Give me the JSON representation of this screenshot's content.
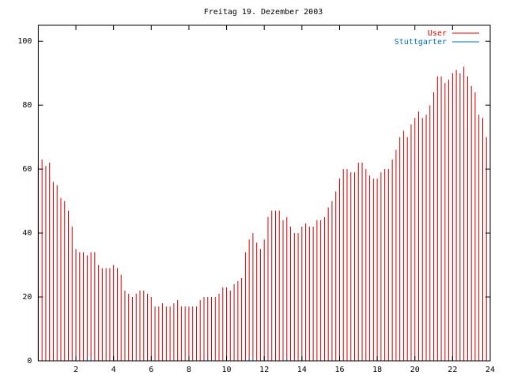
{
  "chart_data": {
    "type": "impulses",
    "title": "Freitag 19. Dezember 2003",
    "xlim": [
      0,
      24
    ],
    "xticks": [
      2,
      4,
      6,
      8,
      10,
      12,
      14,
      16,
      18,
      20,
      22,
      24
    ],
    "ylim": [
      0,
      105
    ],
    "yticks": [
      0,
      20,
      40,
      60,
      80,
      100
    ],
    "legend": "top-right",
    "x": [
      0,
      0.2,
      0.4,
      0.6,
      0.8,
      1,
      1.2,
      1.4,
      1.6,
      1.8,
      2,
      2.2,
      2.4,
      2.6,
      2.8,
      3,
      3.2,
      3.4,
      3.6,
      3.8,
      4,
      4.2,
      4.4,
      4.6,
      4.8,
      5,
      5.2,
      5.4,
      5.6,
      5.8,
      6,
      6.2,
      6.4,
      6.6,
      6.8,
      7,
      7.2,
      7.4,
      7.6,
      7.8,
      8,
      8.2,
      8.4,
      8.6,
      8.8,
      9,
      9.2,
      9.4,
      9.6,
      9.8,
      10,
      10.2,
      10.4,
      10.6,
      10.8,
      11,
      11.2,
      11.4,
      11.6,
      11.8,
      12,
      12.2,
      12.4,
      12.6,
      12.8,
      13,
      13.2,
      13.4,
      13.6,
      13.8,
      14,
      14.2,
      14.4,
      14.6,
      14.8,
      15,
      15.2,
      15.4,
      15.6,
      15.8,
      16,
      16.2,
      16.4,
      16.6,
      16.8,
      17,
      17.2,
      17.4,
      17.6,
      17.8,
      18,
      18.2,
      18.4,
      18.6,
      18.8,
      19,
      19.2,
      19.4,
      19.6,
      19.8,
      20,
      20.2,
      20.4,
      20.6,
      20.8,
      21,
      21.2,
      21.4,
      21.6,
      21.8,
      22,
      22.2,
      22.4,
      22.6,
      22.8,
      23,
      23.2,
      23.4,
      23.6,
      23.8
    ],
    "series": [
      {
        "name": "User",
        "color": "#e00000",
        "values": [
          61,
          63,
          61,
          62,
          56,
          55,
          51,
          50,
          47,
          42,
          35,
          34,
          34,
          33,
          34,
          34,
          30,
          29,
          29,
          29,
          30,
          29,
          27,
          22,
          21,
          20,
          21,
          22,
          22,
          21,
          20,
          17,
          17,
          18,
          17,
          17,
          18,
          19,
          17,
          17,
          17,
          17,
          17,
          19,
          20,
          20,
          20,
          20,
          21,
          23,
          23,
          22,
          24,
          25,
          26,
          34,
          38,
          40,
          37,
          35,
          38,
          45,
          47,
          47,
          47,
          44,
          45,
          42,
          40,
          40,
          42,
          43,
          42,
          42,
          44,
          44,
          45,
          48,
          50,
          53,
          57,
          60,
          60,
          59,
          59,
          62,
          62,
          60,
          58,
          57,
          57,
          59,
          60,
          60,
          63,
          66,
          70,
          72,
          70,
          74,
          76,
          78,
          76,
          77,
          80,
          84,
          89,
          89,
          87,
          88,
          90,
          91,
          90,
          92,
          89,
          86,
          84,
          77,
          76,
          70
        ]
      },
      {
        "name": "Stuttgarter",
        "color": "#0070c0",
        "values": [
          0,
          0,
          0,
          0,
          0,
          0,
          0,
          0,
          0,
          0,
          0,
          0,
          0,
          1,
          1,
          0,
          0,
          0,
          0,
          0,
          0,
          0,
          0,
          0,
          0,
          0,
          0,
          0,
          0,
          0,
          0,
          0,
          0,
          0,
          0,
          0,
          0,
          0,
          0,
          0,
          0,
          0,
          0,
          0,
          0,
          1,
          0,
          0,
          0,
          0,
          0,
          0,
          0,
          0,
          0,
          0,
          1,
          1,
          0,
          0,
          0,
          0,
          0,
          0,
          0,
          0,
          1,
          0,
          0,
          0,
          0,
          0,
          0,
          0,
          0,
          0,
          0,
          0,
          0,
          0,
          0,
          0,
          0,
          0,
          0,
          0,
          0,
          0,
          0,
          0,
          0,
          0,
          0,
          0,
          0,
          0,
          0,
          0,
          0,
          0,
          0,
          0,
          0,
          0,
          0,
          0,
          0,
          0,
          0,
          0,
          0,
          0,
          0,
          0,
          0,
          0,
          0,
          0,
          0,
          0
        ]
      }
    ]
  }
}
